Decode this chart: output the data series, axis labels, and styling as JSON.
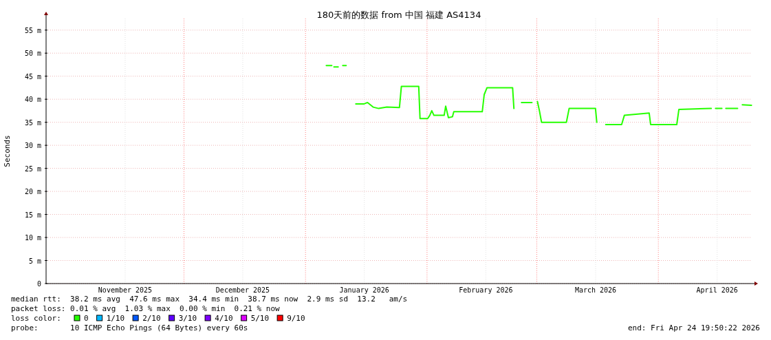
{
  "chart_data": {
    "type": "line",
    "title": "180天前的数据 from 中国 福建 AS4134",
    "ylabel": "Seconds",
    "xlim": [
      "2025-10-26T19:50",
      "2026-04-24T19:50"
    ],
    "xticks": [
      {
        "value": "2025-11-16",
        "label": "November 2025"
      },
      {
        "value": "2025-12-16",
        "label": "December 2025"
      },
      {
        "value": "2026-01-16",
        "label": "January 2026"
      },
      {
        "value": "2026-02-16",
        "label": "February 2026"
      },
      {
        "value": "2026-03-16",
        "label": "March 2026"
      },
      {
        "value": "2026-04-16",
        "label": "April 2026"
      }
    ],
    "ylim": [
      0,
      57.5
    ],
    "yticks": [
      0,
      {
        "value": 5,
        "label": "5 m"
      },
      {
        "value": 10,
        "label": "10 m"
      },
      {
        "value": 15,
        "label": "15 m"
      },
      {
        "value": 20,
        "label": "20 m"
      },
      {
        "value": 25,
        "label": "25 m"
      },
      {
        "value": 30,
        "label": "30 m"
      },
      {
        "value": 35,
        "label": "35 m"
      },
      {
        "value": 40,
        "label": "40 m"
      },
      {
        "value": 45,
        "label": "45 m"
      },
      {
        "value": 50,
        "label": "50 m"
      },
      {
        "value": 55,
        "label": "55 m"
      }
    ],
    "grid": true,
    "legend": "bottom",
    "legend_title": "loss color:",
    "ref_lines": [
      {
        "axis": "x",
        "value": "2025-12-01",
        "color": "#ff8080",
        "line_style": "dotted"
      },
      {
        "axis": "x",
        "value": "2026-01-01",
        "color": "#ff8080",
        "line_style": "dotted"
      },
      {
        "axis": "x",
        "value": "2026-02-01",
        "color": "#ff8080",
        "line_style": "dotted"
      },
      {
        "axis": "x",
        "value": "2026-03-01",
        "color": "#ff8080",
        "line_style": "dotted"
      },
      {
        "axis": "x",
        "value": "2026-04-01",
        "color": "#ff8080",
        "line_style": "dotted"
      }
    ],
    "series": [
      {
        "name": "0",
        "color": "#26ff00",
        "x": [
          "2026-01-06T07:00",
          "2026-01-07T17:00",
          "2026-01-08T00:00",
          "2026-01-08T06:00",
          "2026-01-09T08:00",
          "2026-01-09T14:00",
          "2026-01-10T12:00",
          "2026-01-11T09:00",
          "2026-01-12T15:00",
          "2026-01-13T20:00",
          "2026-01-15T23:00",
          "2026-01-16T20:00",
          "2026-01-18T06:00",
          "2026-01-19T16:00",
          "2026-01-21T18:00",
          "2026-01-24T23:00",
          "2026-01-25T11:00",
          "2026-01-29T21:00",
          "2026-01-30T05:00",
          "2026-02-01T04:00",
          "2026-02-01T17:00",
          "2026-02-02T05:00",
          "2026-02-02T18:00",
          "2026-02-05T09:00",
          "2026-02-05T18:00",
          "2026-02-06T11:00",
          "2026-02-07T12:00",
          "2026-02-07T20:00",
          "2026-02-15T02:00",
          "2026-02-15T14:00",
          "2026-02-16T07:00",
          "2026-02-22T20:00",
          "2026-02-23T04:00",
          "2026-02-23T21:00",
          "2026-02-25T02:00",
          "2026-02-27T18:00",
          "2026-02-28T11:00",
          "2026-03-01T04:00",
          "2026-03-01T16:00",
          "2026-03-02T05:00",
          "2026-03-08T13:00",
          "2026-03-09T06:00",
          "2026-03-15T23:00",
          "2026-03-16T07:00",
          "2026-03-17T00:00",
          "2026-03-18T14:00",
          "2026-03-22T15:00",
          "2026-03-23T08:00",
          "2026-03-29T16:00",
          "2026-03-30T01:00",
          "2026-04-05T17:00",
          "2026-04-06T06:00",
          "2026-04-14T12:00",
          "2026-04-14T22:00",
          "2026-04-15T14:00",
          "2026-04-17T05:00",
          "2026-04-17T17:00",
          "2026-04-18T05:00",
          "2026-04-21T05:00",
          "2026-04-21T17:00",
          "2026-04-22T10:00",
          "2026-04-24T18:00"
        ],
        "values": [
          47.3,
          47.3,
          null,
          47,
          47,
          null,
          47.3,
          47.3,
          null,
          39,
          39,
          39.3,
          38.3,
          38,
          38.3,
          38.2,
          42.8,
          42.8,
          35.8,
          35.8,
          36.5,
          37.5,
          36.5,
          36.5,
          38.5,
          36,
          36.2,
          37.3,
          37.3,
          41,
          42.5,
          42.5,
          38,
          null,
          39.3,
          39.3,
          null,
          39.5,
          37.5,
          35,
          35,
          38,
          38,
          35,
          null,
          34.5,
          34.5,
          36.5,
          37,
          34.5,
          34.5,
          37.8,
          38,
          null,
          38,
          38,
          null,
          38,
          38,
          null,
          38.8,
          38.7
        ]
      },
      {
        "name": "1/10",
        "color": "#00b8ff"
      },
      {
        "name": "2/10",
        "color": "#0059ff"
      },
      {
        "name": "3/10",
        "color": "#5e00ff"
      },
      {
        "name": "4/10",
        "color": "#7e00ff"
      },
      {
        "name": "5/10",
        "color": "#dd00ff"
      },
      {
        "name": "9/10",
        "color": "#ff0000"
      }
    ],
    "annotations": [
      "median rtt:  38.2 ms avg  47.6 ms max  34.4 ms min  38.7 ms now  2.9 ms sd  13.2   am/s",
      "packet loss: 0.01 % avg  1.03 % max  0.00 % min  0.21 % now",
      "probe:       10 ICMP Echo Pings (64 Bytes) every 60s",
      "end: Fri Apr 24 19:50:22 2026"
    ]
  }
}
